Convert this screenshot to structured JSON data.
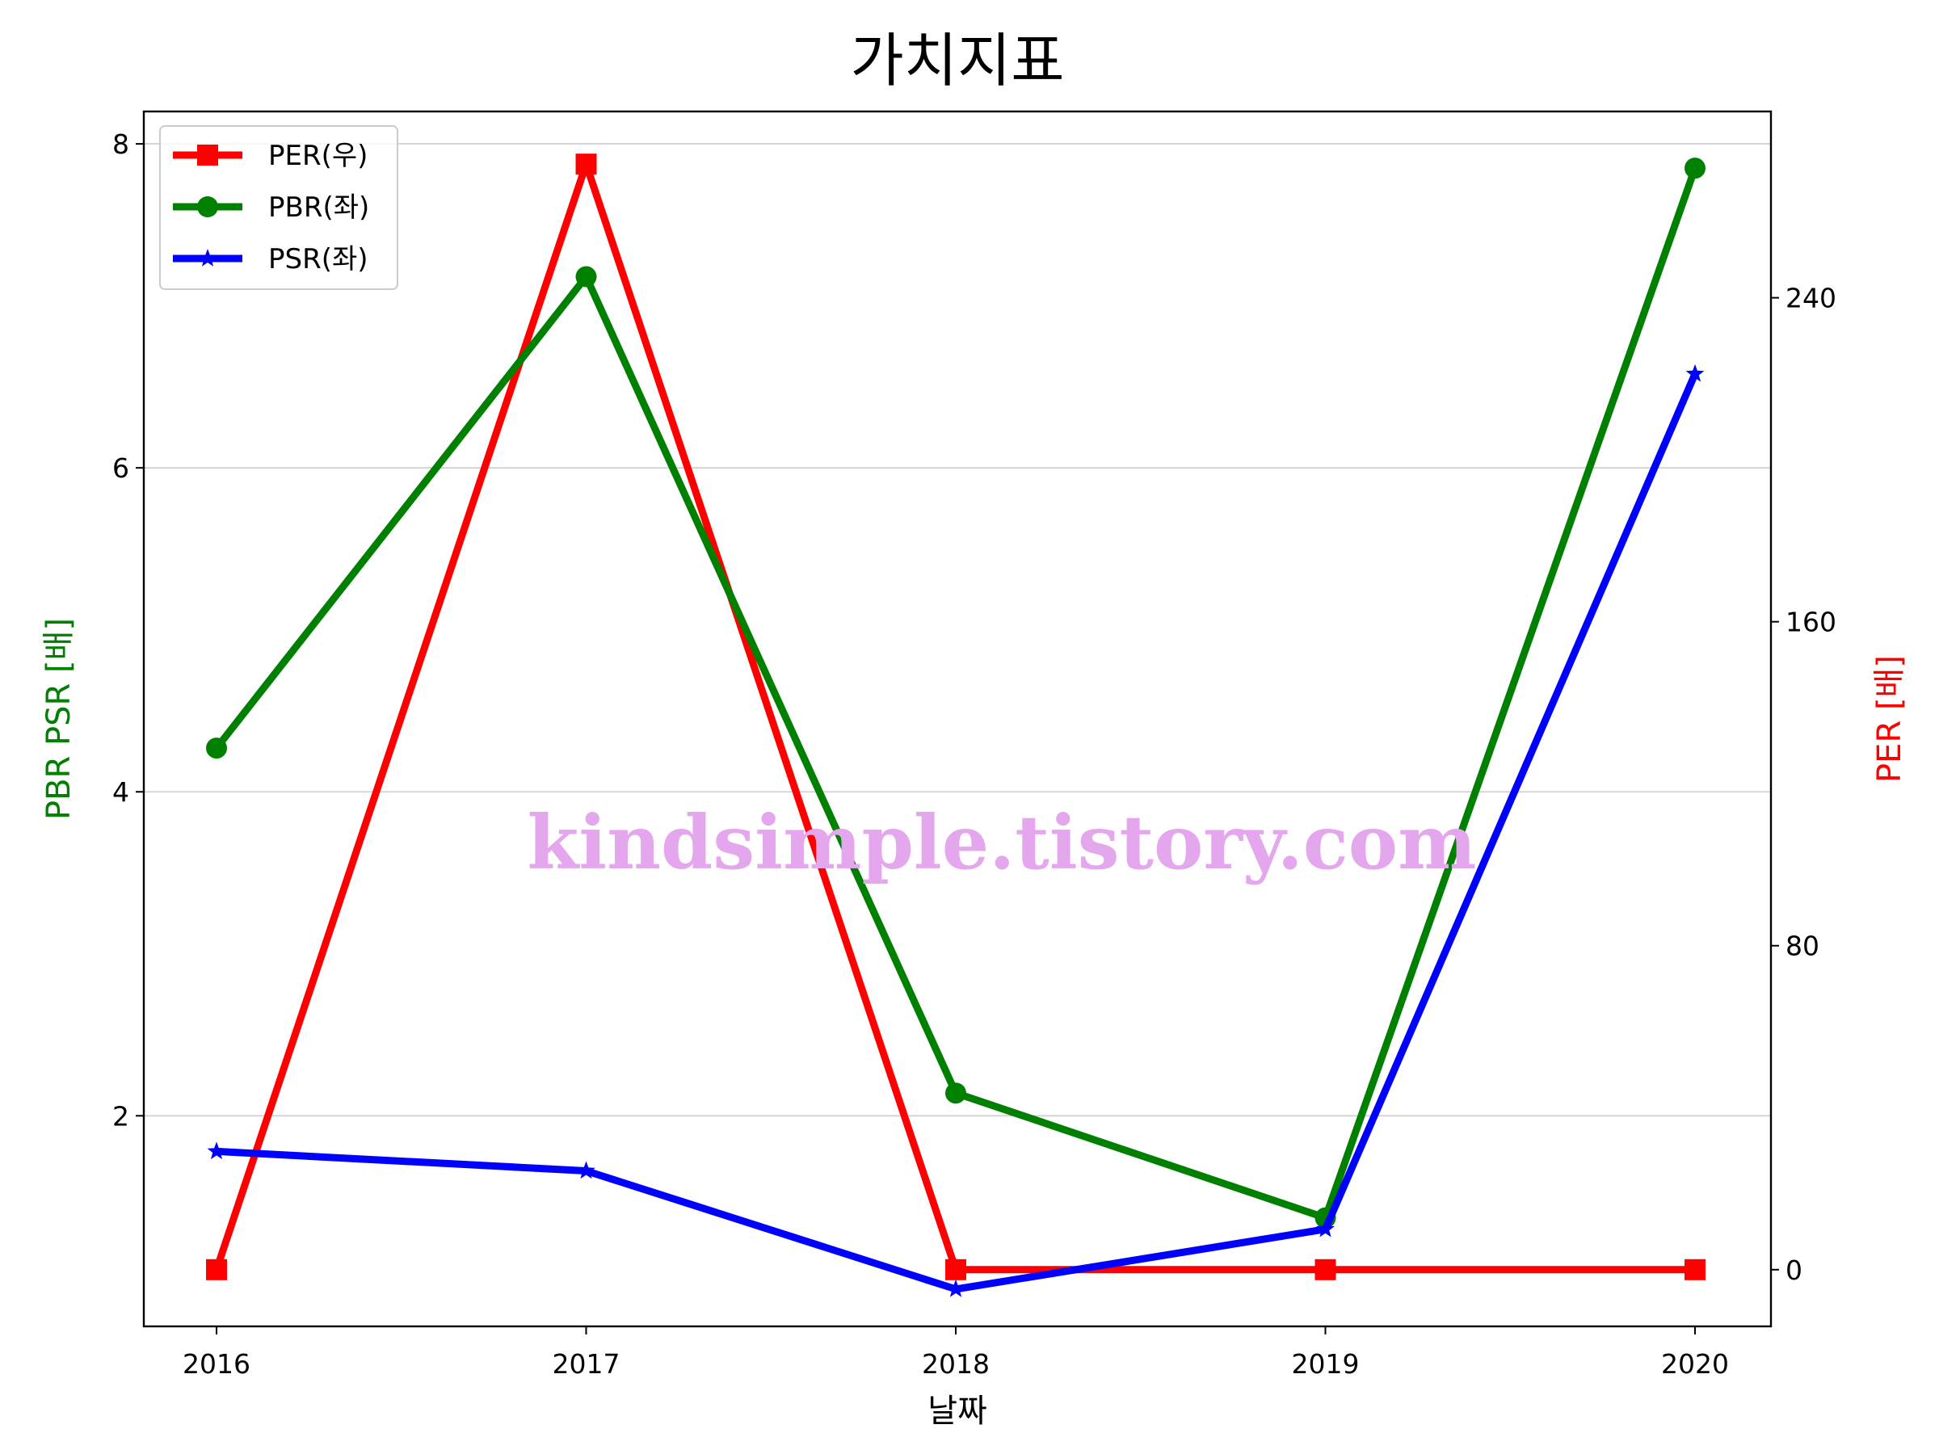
{
  "chart_data": {
    "type": "line",
    "title": "가치지표",
    "xlabel": "날짜",
    "ylabel_left": "PBR PSR [배]",
    "ylabel_right": "PER [배]",
    "categories": [
      "2016",
      "2017",
      "2018",
      "2019",
      "2020"
    ],
    "y_left": {
      "lim": [
        0.7,
        8.2
      ],
      "ticks": [
        2,
        4,
        6,
        8
      ]
    },
    "y_right": {
      "lim": [
        -14,
        286
      ],
      "ticks": [
        0,
        80,
        160,
        240
      ]
    },
    "grid": "horizontal",
    "legend_position": "upper-left",
    "series": [
      {
        "name": "PER(우)",
        "axis": "right",
        "color": "#ff0000",
        "marker": "square",
        "values": [
          0,
          273,
          0,
          0,
          0
        ]
      },
      {
        "name": "PBR(좌)",
        "axis": "left",
        "color": "#008000",
        "marker": "circle",
        "values": [
          4.27,
          7.18,
          2.14,
          1.37,
          7.85
        ]
      },
      {
        "name": "PSR(좌)",
        "axis": "left",
        "color": "#0000ff",
        "marker": "star",
        "values": [
          1.78,
          1.66,
          0.93,
          1.3,
          6.58
        ]
      }
    ],
    "watermark": "kindsimple.tistory.com"
  }
}
